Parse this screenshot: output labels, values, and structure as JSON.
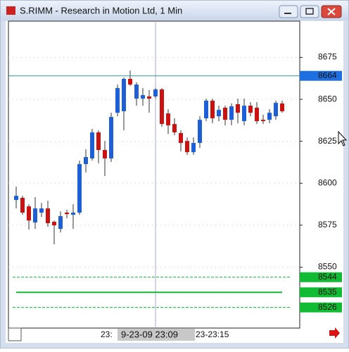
{
  "window": {
    "title": "S.RIMM - Research in Motion Ltd, 1 Min"
  },
  "chart_data": {
    "type": "candlestick",
    "ylim": [
      8513.7,
      8696.6
    ],
    "yticks": [
      8550,
      8575,
      8600,
      8625,
      8650,
      8675
    ],
    "grid": true,
    "up_color": "#1f5fd6",
    "down_color": "#cc1111",
    "open": [
      8590,
      8591.3,
      8586.2,
      8576.6,
      8582.5,
      8585,
      8577,
      8572.8,
      8582.5,
      8581.2,
      8582.5,
      8611.4,
      8614.8,
      8630.3,
      8619.8,
      8614.8,
      8642,
      8642.9,
      8662.2,
      8650.4,
      8650.4,
      8651.7,
      8651.7,
      8655.9,
      8641.6,
      8635.3,
      8629.9,
      8625.2,
      8618.5,
      8624,
      8638.7,
      8649.2,
      8639.9,
      8645,
      8637.8,
      8647.1,
      8637,
      8646.2,
      8645,
      8637.8,
      8637.8,
      8639.9,
      8647.5
    ],
    "high": [
      8598,
      8592.5,
      8587.5,
      8591.7,
      8588.3,
      8589.6,
      8577.8,
      8583.3,
      8584.1,
      8587.5,
      8613.5,
      8620.2,
      8632.4,
      8631.5,
      8625.2,
      8642,
      8658.8,
      8663,
      8667.2,
      8660.1,
      8656.7,
      8655.5,
      8656.7,
      8656.7,
      8644.1,
      8638.7,
      8631.5,
      8627.3,
      8627.3,
      8639.9,
      8650.4,
      8650.4,
      8646.2,
      8646.2,
      8647.5,
      8650.4,
      8650.4,
      8648.3,
      8648.3,
      8640.8,
      8644.1,
      8649.2,
      8649.2
    ],
    "low": [
      8585,
      8581.2,
      8572.4,
      8572.8,
      8579.9,
      8574.1,
      8563.6,
      8570.7,
      8579.1,
      8572.8,
      8581.2,
      8606.4,
      8613.5,
      8611.8,
      8604.3,
      8612.7,
      8639.9,
      8631.5,
      8658,
      8646.2,
      8646.2,
      8642,
      8650.4,
      8633.6,
      8629.4,
      8628.6,
      8619,
      8616.9,
      8616.9,
      8621.1,
      8637,
      8635.7,
      8637,
      8634.5,
      8634.5,
      8635.7,
      8634.5,
      8639.9,
      8635.3,
      8635.3,
      8635.7,
      8637.8,
      8642
    ],
    "close": [
      8592.5,
      8582.5,
      8577.8,
      8585,
      8585,
      8576.2,
      8574.9,
      8580.4,
      8581.6,
      8582.5,
      8611.4,
      8615.6,
      8630.3,
      8619.8,
      8614.8,
      8639.5,
      8656.7,
      8662.2,
      8658.8,
      8658.8,
      8652.5,
      8650.4,
      8655.9,
      8635.3,
      8634.5,
      8630.3,
      8624,
      8618.5,
      8624,
      8637.8,
      8649.2,
      8638.7,
      8643.7,
      8637.8,
      8645.8,
      8642,
      8646.2,
      8642,
      8637,
      8637,
      8642,
      8647.9,
      8642.9
    ],
    "cursor_price": 8664,
    "cursor_color": "#1e6fe0",
    "cursor_line_color": "#2a9d9d",
    "levels": [
      8544,
      8535,
      8526
    ],
    "level_color": "#11bb33",
    "x_labels": [
      "23:",
      "23-23:15"
    ],
    "cursor_time": "9-23-09 23:09"
  }
}
